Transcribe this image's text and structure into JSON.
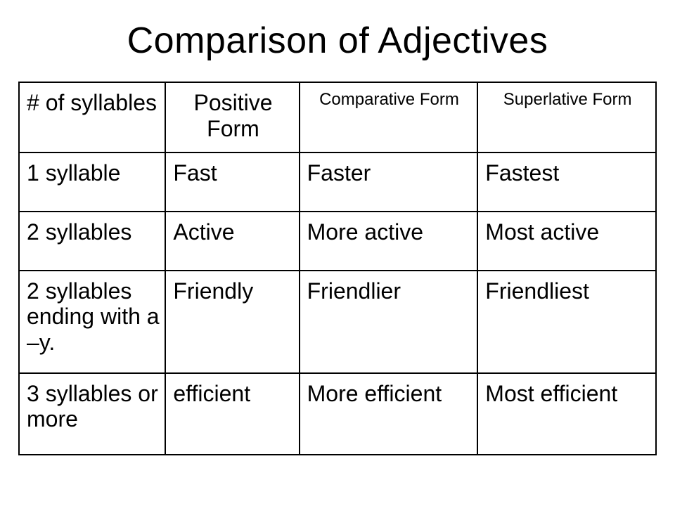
{
  "title": "Comparison of Adjectives",
  "table": {
    "type": "table",
    "background_color": "#ffffff",
    "border_color": "#000000",
    "border_width": 2,
    "title_fontsize": 52,
    "header_large_fontsize": 32,
    "header_small_fontsize": 24,
    "body_fontsize": 32,
    "text_color": "#000000",
    "column_widths_pct": [
      23,
      21,
      28,
      28
    ],
    "columns": [
      {
        "label": "# of syllables",
        "align": "left",
        "size": "large"
      },
      {
        "label": "Positive Form",
        "align": "center",
        "size": "large"
      },
      {
        "label": "Comparative Form",
        "align": "center",
        "size": "small"
      },
      {
        "label": "Superlative Form",
        "align": "center",
        "size": "small"
      }
    ],
    "rows": [
      [
        "1 syllable",
        "Fast",
        "Faster",
        "Fastest"
      ],
      [
        "2 syllables",
        "Active",
        "More active",
        "Most active"
      ],
      [
        "2 syllables ending with a –y.",
        "Friendly",
        "Friendlier",
        "Friendliest"
      ],
      [
        "3 syllables or more",
        "efficient",
        "More efficient",
        "Most efficient"
      ]
    ]
  }
}
